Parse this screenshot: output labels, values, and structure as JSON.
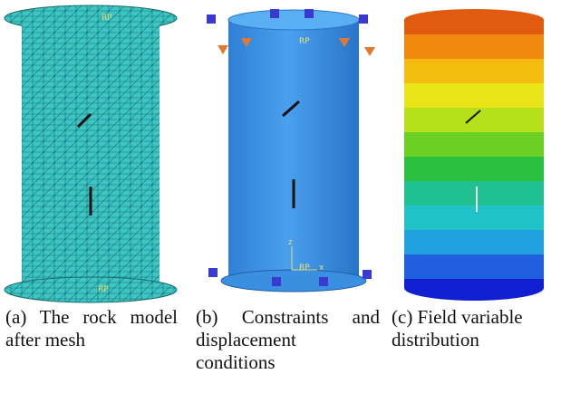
{
  "panels": [
    {
      "labels": [
        "RP",
        "RP"
      ],
      "caption": "(a) The rock model after mesh"
    },
    {
      "labels": [
        "RP",
        "RP",
        "z",
        "x"
      ],
      "caption": "(b) Constraints and displacement conditions"
    },
    {
      "labels": [],
      "caption": "(c) Field variable distribution"
    }
  ]
}
